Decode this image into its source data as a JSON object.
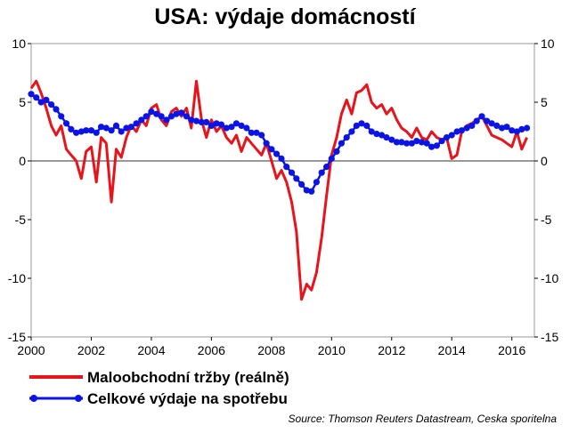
{
  "chart_data": {
    "type": "line",
    "title": "USA: výdaje domácností",
    "source": "Source: Thomson Reuters Datastream, Ceska sporitelna",
    "xlabel": "",
    "ylabel": "",
    "xlim": [
      2000,
      2016.75
    ],
    "ylim": [
      -15,
      10
    ],
    "x_ticks": [
      2000,
      2002,
      2004,
      2006,
      2008,
      2010,
      2012,
      2014,
      2016
    ],
    "y_ticks": [
      10,
      5,
      0,
      -5,
      -10,
      -15
    ],
    "grid": false,
    "zero_line": true,
    "legend_position": "bottom-left",
    "series": [
      {
        "name": "Maloobchodní tržby (reálně)",
        "color": "#e8141b",
        "marker": "none",
        "points": [
          [
            2000.0,
            6.2
          ],
          [
            2000.17,
            6.8
          ],
          [
            2000.33,
            5.8
          ],
          [
            2000.5,
            4.5
          ],
          [
            2000.67,
            3.0
          ],
          [
            2000.83,
            2.2
          ],
          [
            2001.0,
            3.0
          ],
          [
            2001.17,
            1.0
          ],
          [
            2001.33,
            0.5
          ],
          [
            2001.5,
            0.0
          ],
          [
            2001.67,
            -1.5
          ],
          [
            2001.83,
            0.8
          ],
          [
            2002.0,
            1.2
          ],
          [
            2002.17,
            -1.8
          ],
          [
            2002.33,
            2.0
          ],
          [
            2002.5,
            1.5
          ],
          [
            2002.67,
            -3.5
          ],
          [
            2002.83,
            1.0
          ],
          [
            2003.0,
            0.3
          ],
          [
            2003.17,
            2.0
          ],
          [
            2003.33,
            3.0
          ],
          [
            2003.5,
            2.5
          ],
          [
            2003.67,
            3.5
          ],
          [
            2003.83,
            3.0
          ],
          [
            2004.0,
            4.5
          ],
          [
            2004.17,
            4.8
          ],
          [
            2004.33,
            3.5
          ],
          [
            2004.5,
            3.0
          ],
          [
            2004.67,
            4.2
          ],
          [
            2004.83,
            4.5
          ],
          [
            2005.0,
            3.8
          ],
          [
            2005.17,
            4.5
          ],
          [
            2005.33,
            2.8
          ],
          [
            2005.5,
            6.8
          ],
          [
            2005.67,
            3.5
          ],
          [
            2005.83,
            2.0
          ],
          [
            2006.0,
            3.5
          ],
          [
            2006.17,
            2.5
          ],
          [
            2006.33,
            3.0
          ],
          [
            2006.5,
            2.0
          ],
          [
            2006.67,
            1.5
          ],
          [
            2006.83,
            2.2
          ],
          [
            2007.0,
            0.8
          ],
          [
            2007.17,
            2.0
          ],
          [
            2007.33,
            1.5
          ],
          [
            2007.5,
            1.0
          ],
          [
            2007.67,
            0.5
          ],
          [
            2007.83,
            1.5
          ],
          [
            2008.0,
            0.0
          ],
          [
            2008.17,
            -1.5
          ],
          [
            2008.33,
            -0.8
          ],
          [
            2008.5,
            -1.8
          ],
          [
            2008.67,
            -3.5
          ],
          [
            2008.83,
            -6.0
          ],
          [
            2009.0,
            -11.8
          ],
          [
            2009.17,
            -10.5
          ],
          [
            2009.33,
            -11.0
          ],
          [
            2009.5,
            -9.5
          ],
          [
            2009.67,
            -6.5
          ],
          [
            2009.83,
            -3.0
          ],
          [
            2010.0,
            0.5
          ],
          [
            2010.17,
            2.0
          ],
          [
            2010.33,
            4.0
          ],
          [
            2010.5,
            5.2
          ],
          [
            2010.67,
            4.0
          ],
          [
            2010.83,
            5.8
          ],
          [
            2011.0,
            6.0
          ],
          [
            2011.17,
            6.5
          ],
          [
            2011.33,
            5.0
          ],
          [
            2011.5,
            4.5
          ],
          [
            2011.67,
            4.8
          ],
          [
            2011.83,
            4.0
          ],
          [
            2012.0,
            4.5
          ],
          [
            2012.17,
            3.5
          ],
          [
            2012.33,
            2.8
          ],
          [
            2012.5,
            2.5
          ],
          [
            2012.67,
            2.0
          ],
          [
            2012.83,
            2.8
          ],
          [
            2013.0,
            2.0
          ],
          [
            2013.17,
            1.8
          ],
          [
            2013.33,
            2.5
          ],
          [
            2013.5,
            2.0
          ],
          [
            2013.67,
            1.8
          ],
          [
            2013.83,
            2.0
          ],
          [
            2014.0,
            0.2
          ],
          [
            2014.17,
            0.5
          ],
          [
            2014.33,
            2.5
          ],
          [
            2014.5,
            3.0
          ],
          [
            2014.67,
            3.2
          ],
          [
            2014.83,
            3.5
          ],
          [
            2015.0,
            3.8
          ],
          [
            2015.17,
            3.0
          ],
          [
            2015.33,
            2.2
          ],
          [
            2015.5,
            2.0
          ],
          [
            2015.67,
            1.8
          ],
          [
            2015.83,
            1.5
          ],
          [
            2016.0,
            1.2
          ],
          [
            2016.17,
            2.5
          ],
          [
            2016.33,
            1.0
          ],
          [
            2016.5,
            2.0
          ]
        ]
      },
      {
        "name": "Celkové výdaje na spotřebu",
        "color": "#0a14e6",
        "marker": "circle",
        "points": [
          [
            2000.0,
            5.7
          ],
          [
            2000.17,
            5.4
          ],
          [
            2000.33,
            5.0
          ],
          [
            2000.5,
            5.2
          ],
          [
            2000.67,
            4.8
          ],
          [
            2000.83,
            4.4
          ],
          [
            2001.0,
            3.8
          ],
          [
            2001.17,
            3.2
          ],
          [
            2001.33,
            2.7
          ],
          [
            2001.5,
            2.4
          ],
          [
            2001.67,
            2.5
          ],
          [
            2001.83,
            2.6
          ],
          [
            2002.0,
            2.6
          ],
          [
            2002.17,
            2.4
          ],
          [
            2002.33,
            2.9
          ],
          [
            2002.5,
            2.8
          ],
          [
            2002.67,
            2.6
          ],
          [
            2002.83,
            3.0
          ],
          [
            2003.0,
            2.5
          ],
          [
            2003.17,
            2.8
          ],
          [
            2003.33,
            2.9
          ],
          [
            2003.5,
            3.2
          ],
          [
            2003.67,
            3.5
          ],
          [
            2003.83,
            3.8
          ],
          [
            2004.0,
            4.2
          ],
          [
            2004.17,
            4.0
          ],
          [
            2004.33,
            3.8
          ],
          [
            2004.5,
            3.5
          ],
          [
            2004.67,
            3.8
          ],
          [
            2004.83,
            4.0
          ],
          [
            2005.0,
            4.1
          ],
          [
            2005.17,
            3.8
          ],
          [
            2005.33,
            3.5
          ],
          [
            2005.5,
            3.4
          ],
          [
            2005.67,
            3.3
          ],
          [
            2005.83,
            3.3
          ],
          [
            2006.0,
            3.0
          ],
          [
            2006.17,
            3.2
          ],
          [
            2006.33,
            3.1
          ],
          [
            2006.5,
            2.8
          ],
          [
            2006.67,
            2.9
          ],
          [
            2006.83,
            3.2
          ],
          [
            2007.0,
            3.0
          ],
          [
            2007.17,
            2.8
          ],
          [
            2007.33,
            2.4
          ],
          [
            2007.5,
            2.4
          ],
          [
            2007.67,
            2.2
          ],
          [
            2007.83,
            1.5
          ],
          [
            2008.0,
            1.0
          ],
          [
            2008.17,
            0.6
          ],
          [
            2008.33,
            0.2
          ],
          [
            2008.5,
            -0.5
          ],
          [
            2008.67,
            -1.0
          ],
          [
            2008.83,
            -1.5
          ],
          [
            2009.0,
            -2.0
          ],
          [
            2009.17,
            -2.5
          ],
          [
            2009.33,
            -2.6
          ],
          [
            2009.5,
            -1.8
          ],
          [
            2009.67,
            -1.0
          ],
          [
            2009.83,
            -0.5
          ],
          [
            2010.0,
            0.2
          ],
          [
            2010.17,
            0.8
          ],
          [
            2010.33,
            1.5
          ],
          [
            2010.5,
            2.0
          ],
          [
            2010.67,
            2.5
          ],
          [
            2010.83,
            3.0
          ],
          [
            2011.0,
            3.2
          ],
          [
            2011.17,
            3.0
          ],
          [
            2011.33,
            2.5
          ],
          [
            2011.5,
            2.3
          ],
          [
            2011.67,
            2.2
          ],
          [
            2011.83,
            2.0
          ],
          [
            2012.0,
            1.8
          ],
          [
            2012.17,
            1.6
          ],
          [
            2012.33,
            1.6
          ],
          [
            2012.5,
            1.5
          ],
          [
            2012.67,
            1.5
          ],
          [
            2012.83,
            1.7
          ],
          [
            2013.0,
            1.6
          ],
          [
            2013.17,
            1.5
          ],
          [
            2013.33,
            1.2
          ],
          [
            2013.5,
            1.3
          ],
          [
            2013.67,
            1.7
          ],
          [
            2013.83,
            2.0
          ],
          [
            2014.0,
            2.2
          ],
          [
            2014.17,
            2.5
          ],
          [
            2014.33,
            2.6
          ],
          [
            2014.5,
            2.8
          ],
          [
            2014.67,
            3.0
          ],
          [
            2014.83,
            3.4
          ],
          [
            2015.0,
            3.8
          ],
          [
            2015.17,
            3.4
          ],
          [
            2015.33,
            3.2
          ],
          [
            2015.5,
            3.0
          ],
          [
            2015.67,
            2.8
          ],
          [
            2015.83,
            2.9
          ],
          [
            2016.0,
            2.6
          ],
          [
            2016.17,
            2.5
          ],
          [
            2016.33,
            2.7
          ],
          [
            2016.5,
            2.8
          ]
        ]
      }
    ]
  }
}
